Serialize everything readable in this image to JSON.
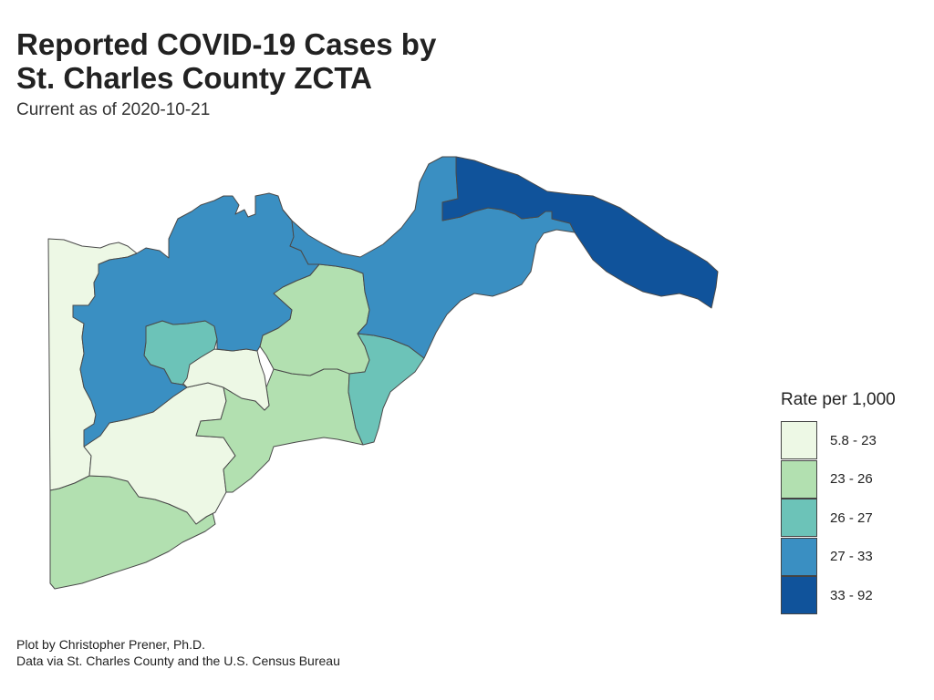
{
  "title": {
    "line1": "Reported COVID-19 Cases by",
    "line2": "St. Charles County ZCTA"
  },
  "subtitle": "Current as of 2020-10-21",
  "legend": {
    "title": "Rate per 1,000",
    "items": [
      {
        "label": "5.8 - 23",
        "color": "#edf8e5"
      },
      {
        "label": "23 - 26",
        "color": "#b2e0b0"
      },
      {
        "label": "26 - 27",
        "color": "#6cc3b8"
      },
      {
        "label": "27 - 33",
        "color": "#3a8fc2"
      },
      {
        "label": "33 - 92",
        "color": "#10539b"
      }
    ]
  },
  "map": {
    "zones": [
      {
        "name": "west-edge-zcta",
        "bin": 0
      },
      {
        "name": "north-west-zcta",
        "bin": 3
      },
      {
        "name": "central-small-zcta",
        "bin": 2
      },
      {
        "name": "central-low-zcta",
        "bin": 0
      },
      {
        "name": "south-central-zcta",
        "bin": 0
      },
      {
        "name": "southwest-zcta",
        "bin": 1
      },
      {
        "name": "central-east-zcta",
        "bin": 1
      },
      {
        "name": "south-east-strip-zcta",
        "bin": 1
      },
      {
        "name": "east-zcta",
        "bin": 2
      },
      {
        "name": "north-river-zcta",
        "bin": 3
      },
      {
        "name": "northeast-point-zcta",
        "bin": 4
      }
    ]
  },
  "caption": {
    "line1": "Plot by Christopher Prener, Ph.D.",
    "line2": "Data via St. Charles County and the U.S. Census Bureau"
  }
}
